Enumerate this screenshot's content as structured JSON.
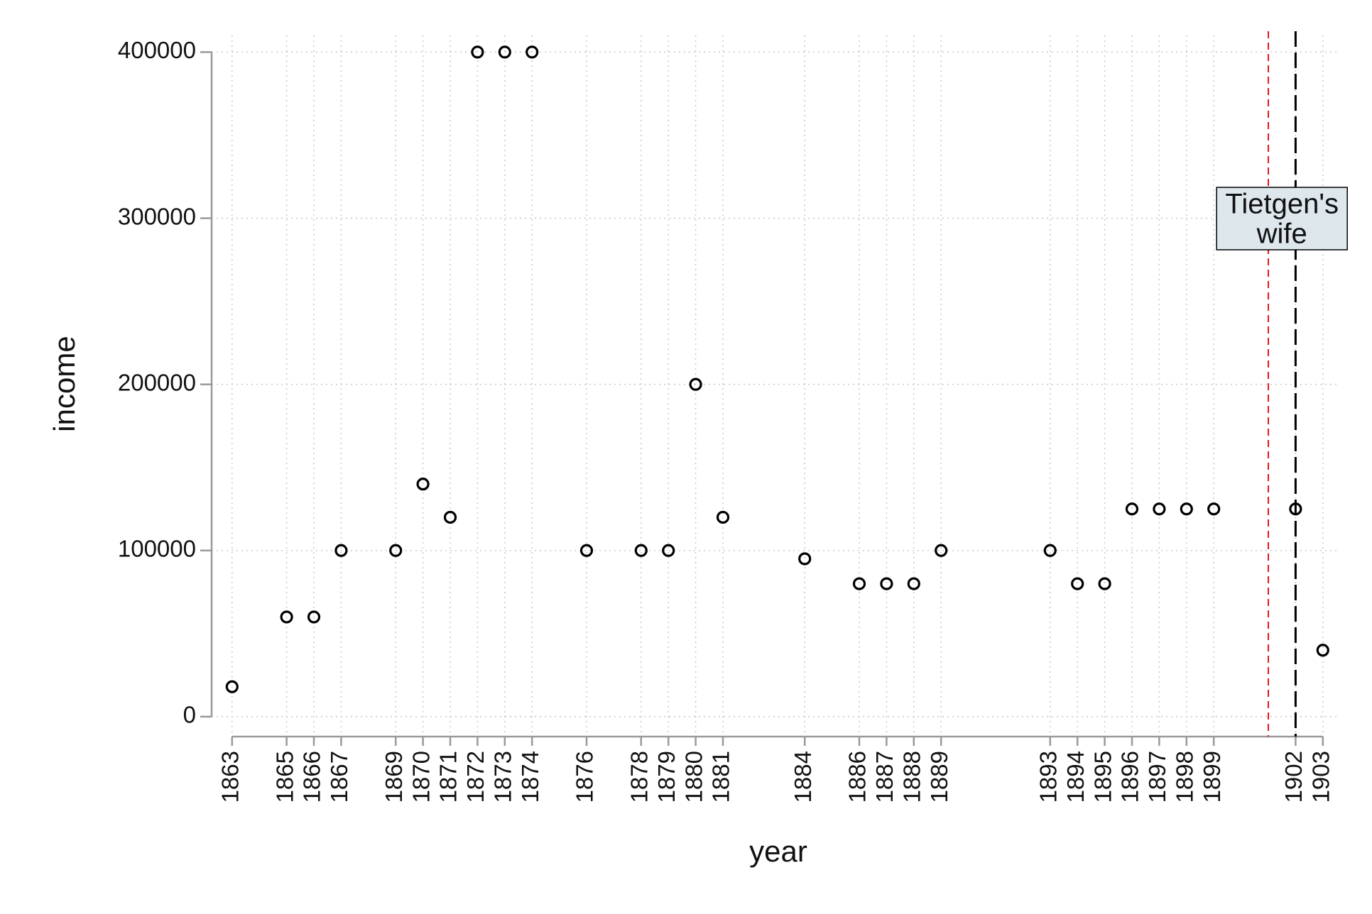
{
  "chart_data": {
    "type": "scatter",
    "x_label": "year",
    "y_label": "income",
    "x": [
      1863,
      1865,
      1866,
      1867,
      1869,
      1870,
      1871,
      1872,
      1873,
      1874,
      1876,
      1878,
      1879,
      1880,
      1881,
      1884,
      1886,
      1887,
      1888,
      1889,
      1893,
      1894,
      1895,
      1896,
      1897,
      1898,
      1899,
      1902,
      1903
    ],
    "values": [
      18000,
      60000,
      60000,
      100000,
      100000,
      140000,
      120000,
      400000,
      400000,
      400000,
      100000,
      100000,
      100000,
      200000,
      120000,
      95000,
      80000,
      80000,
      80000,
      100000,
      100000,
      80000,
      80000,
      125000,
      125000,
      125000,
      125000,
      125000,
      40000
    ],
    "color": "#000000",
    "xlim": [
      1862.25,
      1903.5
    ],
    "xticks": [
      1863,
      1865,
      1866,
      1867,
      1869,
      1870,
      1871,
      1872,
      1873,
      1874,
      1876,
      1878,
      1879,
      1880,
      1881,
      1884,
      1886,
      1887,
      1888,
      1889,
      1893,
      1894,
      1895,
      1896,
      1897,
      1898,
      1899,
      1902,
      1903
    ],
    "ylim": [
      -12000,
      410000
    ],
    "yticks": [
      0,
      100000,
      200000,
      300000,
      400000
    ],
    "grid": true,
    "vlines": [
      {
        "x": 1901,
        "color": "#e8141e"
      },
      {
        "x": 1902,
        "color": "#000000"
      }
    ],
    "annotation": [
      "Tietgen's",
      "wife"
    ]
  }
}
